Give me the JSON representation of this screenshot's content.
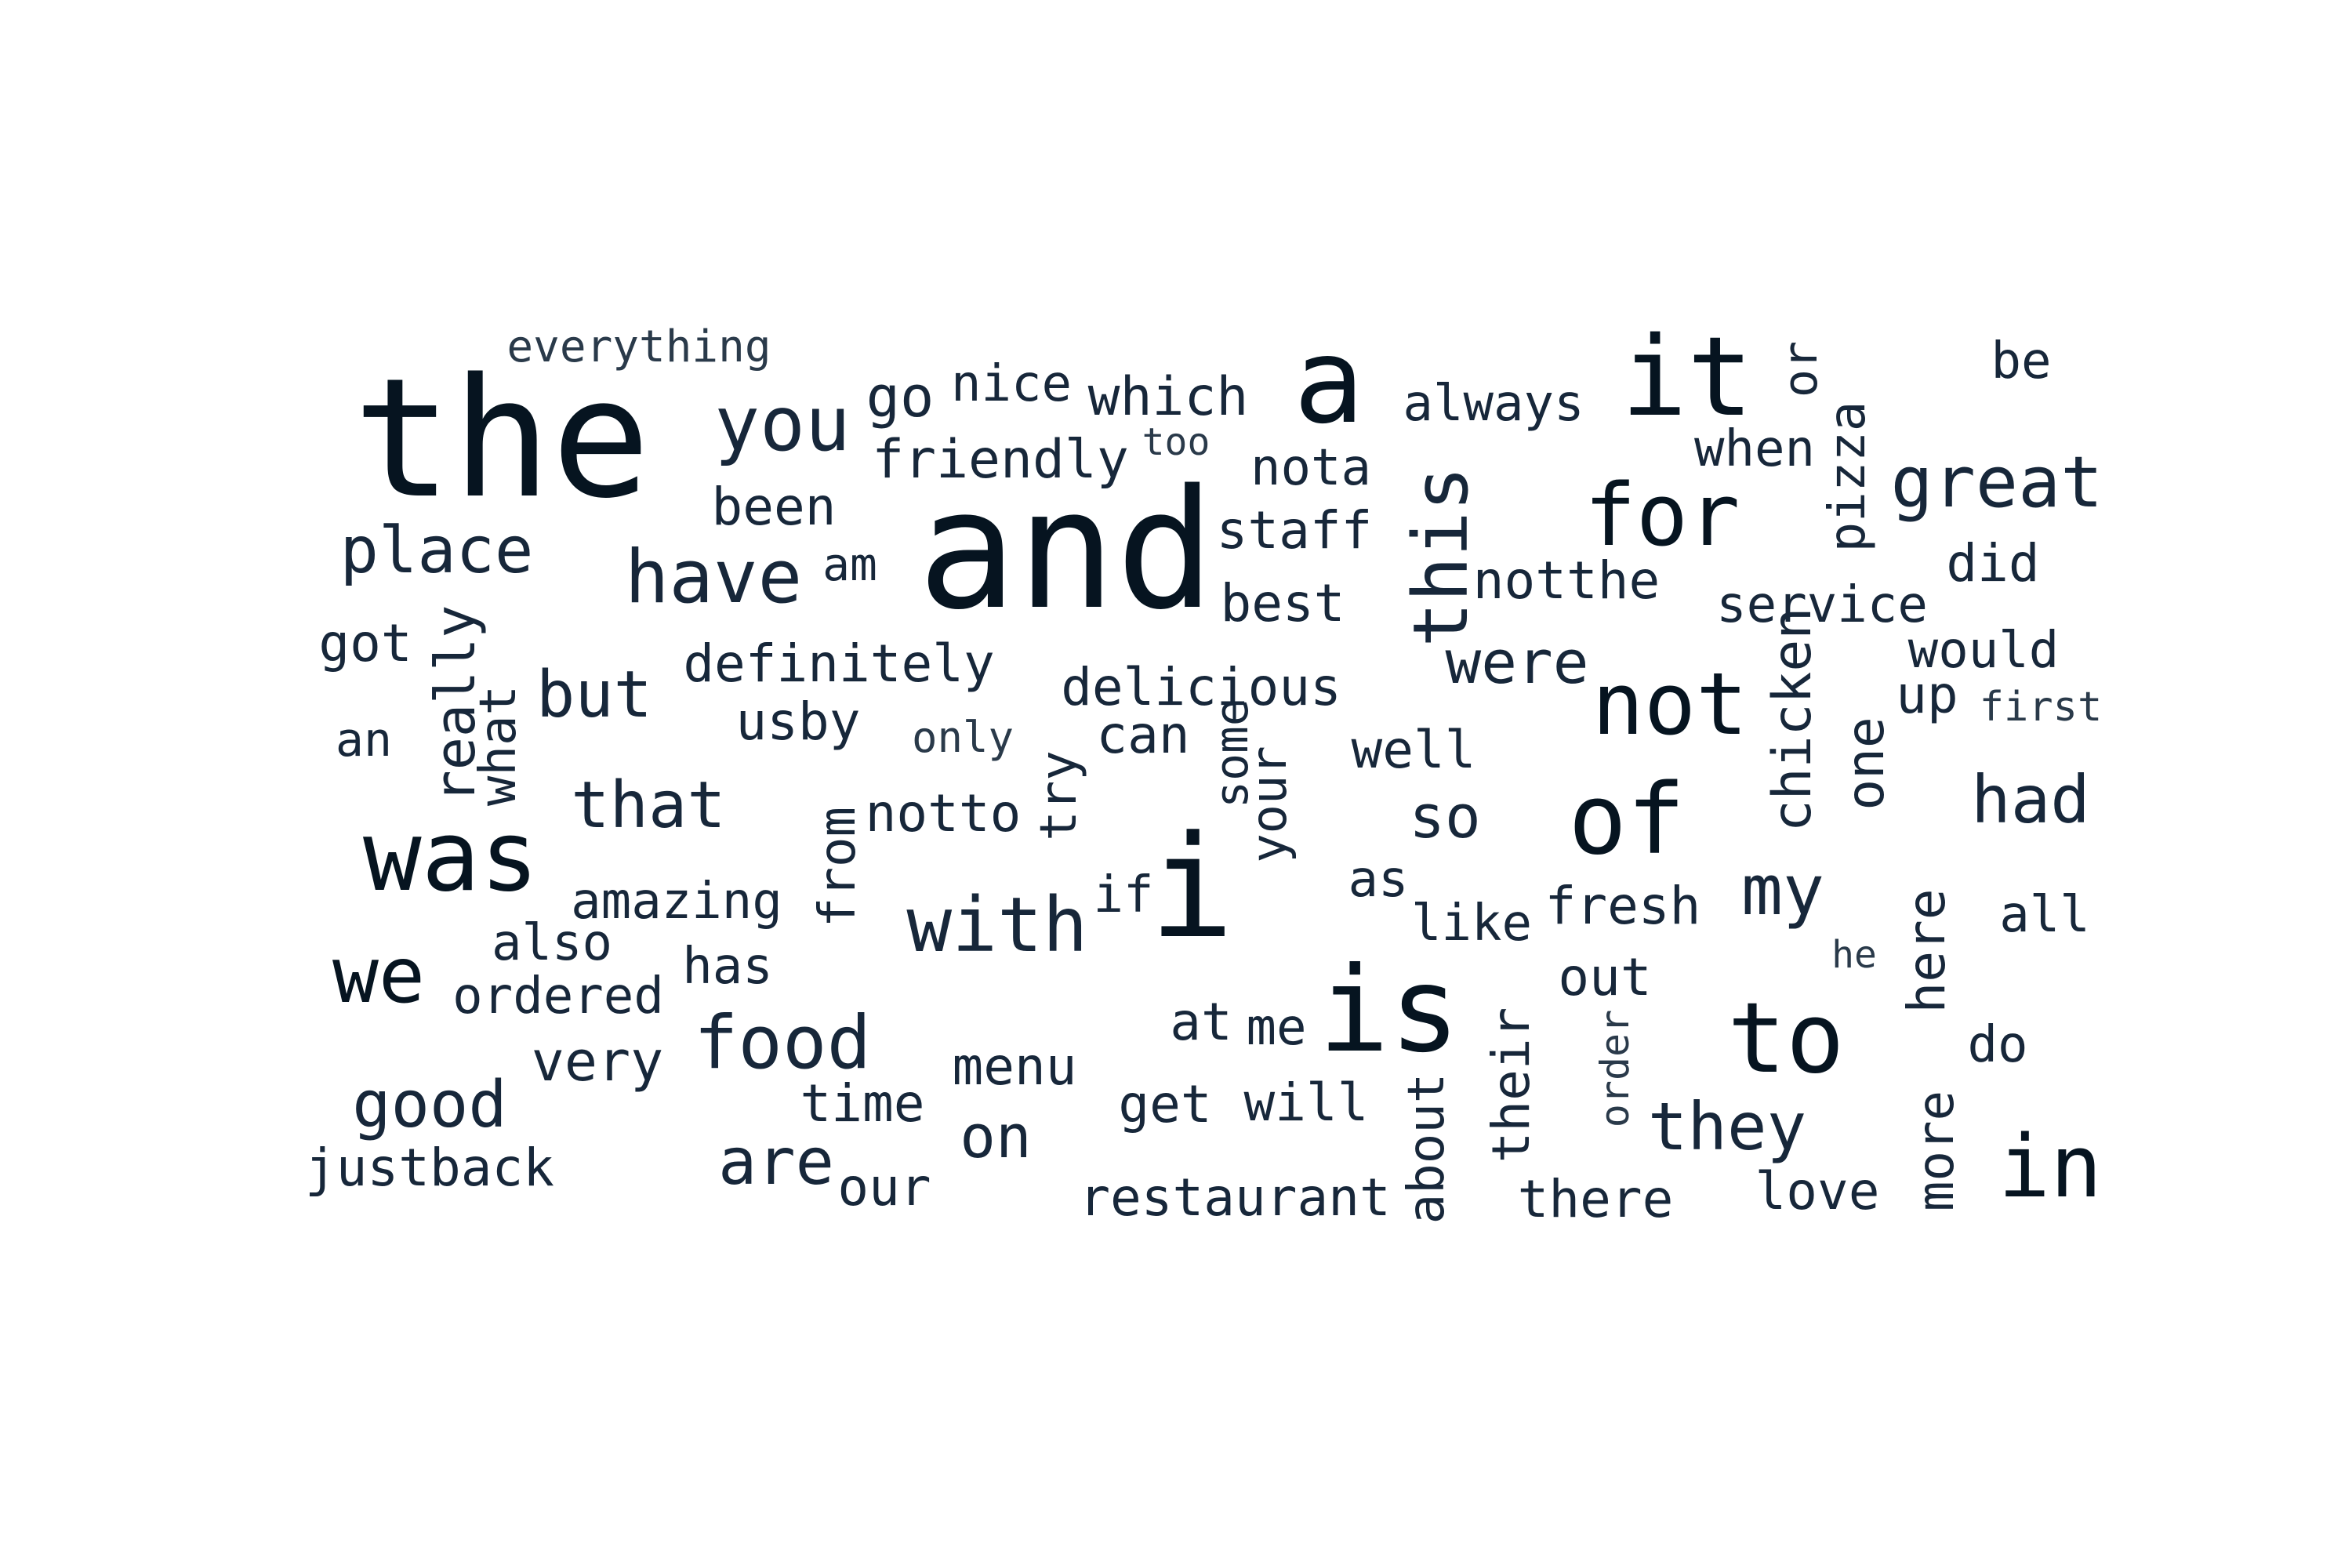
{
  "wordcloud": {
    "colors": {
      "dark": "#061420",
      "mid": "#17273a",
      "light": "#2a3a4a"
    },
    "words": [
      {
        "text": "the",
        "c": "dark"
      },
      {
        "text": "everything",
        "c": "light"
      },
      {
        "text": "you",
        "c": "mid"
      },
      {
        "text": "go",
        "c": "mid"
      },
      {
        "text": "nice",
        "c": "mid"
      },
      {
        "text": "which",
        "c": "mid"
      },
      {
        "text": "a",
        "c": "dark"
      },
      {
        "text": "always",
        "c": "mid"
      },
      {
        "text": "it",
        "c": "dark"
      },
      {
        "text": "or",
        "c": "mid"
      },
      {
        "text": "be",
        "c": "mid"
      },
      {
        "text": "friendly",
        "c": "mid"
      },
      {
        "text": "too",
        "c": "light"
      },
      {
        "text": "nota",
        "c": "mid"
      },
      {
        "text": "when",
        "c": "mid"
      },
      {
        "text": "pizza",
        "c": "mid"
      },
      {
        "text": "great",
        "c": "mid"
      },
      {
        "text": "place",
        "c": "mid"
      },
      {
        "text": "been",
        "c": "mid"
      },
      {
        "text": "and",
        "c": "dark"
      },
      {
        "text": "staff",
        "c": "mid"
      },
      {
        "text": "this",
        "c": "mid"
      },
      {
        "text": "for",
        "c": "dark"
      },
      {
        "text": "have",
        "c": "mid"
      },
      {
        "text": "am",
        "c": "mid"
      },
      {
        "text": "notthe",
        "c": "mid"
      },
      {
        "text": "did",
        "c": "mid"
      },
      {
        "text": "best",
        "c": "mid"
      },
      {
        "text": "service",
        "c": "mid"
      },
      {
        "text": "got",
        "c": "mid"
      },
      {
        "text": "really",
        "c": "mid"
      },
      {
        "text": "definitely",
        "c": "mid"
      },
      {
        "text": "were",
        "c": "mid"
      },
      {
        "text": "would",
        "c": "mid"
      },
      {
        "text": "but",
        "c": "mid"
      },
      {
        "text": "delicious",
        "c": "mid"
      },
      {
        "text": "chicken",
        "c": "mid"
      },
      {
        "text": "not",
        "c": "dark"
      },
      {
        "text": "up",
        "c": "mid"
      },
      {
        "text": "first",
        "c": "light"
      },
      {
        "text": "an",
        "c": "mid"
      },
      {
        "text": "what",
        "c": "mid"
      },
      {
        "text": "usby",
        "c": "mid"
      },
      {
        "text": "only",
        "c": "light"
      },
      {
        "text": "can",
        "c": "mid"
      },
      {
        "text": "well",
        "c": "mid"
      },
      {
        "text": "one",
        "c": "mid"
      },
      {
        "text": "some",
        "c": "mid"
      },
      {
        "text": "that",
        "c": "mid"
      },
      {
        "text": "try",
        "c": "mid"
      },
      {
        "text": "your",
        "c": "mid"
      },
      {
        "text": "had",
        "c": "mid"
      },
      {
        "text": "was",
        "c": "dark"
      },
      {
        "text": "from",
        "c": "mid"
      },
      {
        "text": "notto",
        "c": "mid"
      },
      {
        "text": "so",
        "c": "mid"
      },
      {
        "text": "of",
        "c": "dark"
      },
      {
        "text": "i",
        "c": "dark"
      },
      {
        "text": "amazing",
        "c": "mid"
      },
      {
        "text": "if",
        "c": "mid"
      },
      {
        "text": "as",
        "c": "mid"
      },
      {
        "text": "fresh",
        "c": "mid"
      },
      {
        "text": "my",
        "c": "mid"
      },
      {
        "text": "with",
        "c": "mid"
      },
      {
        "text": "like",
        "c": "mid"
      },
      {
        "text": "all",
        "c": "mid"
      },
      {
        "text": "also",
        "c": "mid"
      },
      {
        "text": "here",
        "c": "mid"
      },
      {
        "text": "we",
        "c": "dark"
      },
      {
        "text": "has",
        "c": "mid"
      },
      {
        "text": "he",
        "c": "light"
      },
      {
        "text": "ordered",
        "c": "mid"
      },
      {
        "text": "out",
        "c": "mid"
      },
      {
        "text": "is",
        "c": "dark"
      },
      {
        "text": "food",
        "c": "mid"
      },
      {
        "text": "at",
        "c": "mid"
      },
      {
        "text": "me",
        "c": "mid"
      },
      {
        "text": "their",
        "c": "mid"
      },
      {
        "text": "order",
        "c": "light"
      },
      {
        "text": "to",
        "c": "dark"
      },
      {
        "text": "very",
        "c": "mid"
      },
      {
        "text": "menu",
        "c": "mid"
      },
      {
        "text": "do",
        "c": "mid"
      },
      {
        "text": "good",
        "c": "mid"
      },
      {
        "text": "time",
        "c": "mid"
      },
      {
        "text": "get",
        "c": "mid"
      },
      {
        "text": "will",
        "c": "mid"
      },
      {
        "text": "about",
        "c": "mid"
      },
      {
        "text": "they",
        "c": "mid"
      },
      {
        "text": "on",
        "c": "mid"
      },
      {
        "text": "more",
        "c": "mid"
      },
      {
        "text": "in",
        "c": "dark"
      },
      {
        "text": "justback",
        "c": "mid"
      },
      {
        "text": "are",
        "c": "mid"
      },
      {
        "text": "our",
        "c": "mid"
      },
      {
        "text": "restaurant",
        "c": "mid"
      },
      {
        "text": "there",
        "c": "mid"
      },
      {
        "text": "love",
        "c": "mid"
      }
    ]
  }
}
